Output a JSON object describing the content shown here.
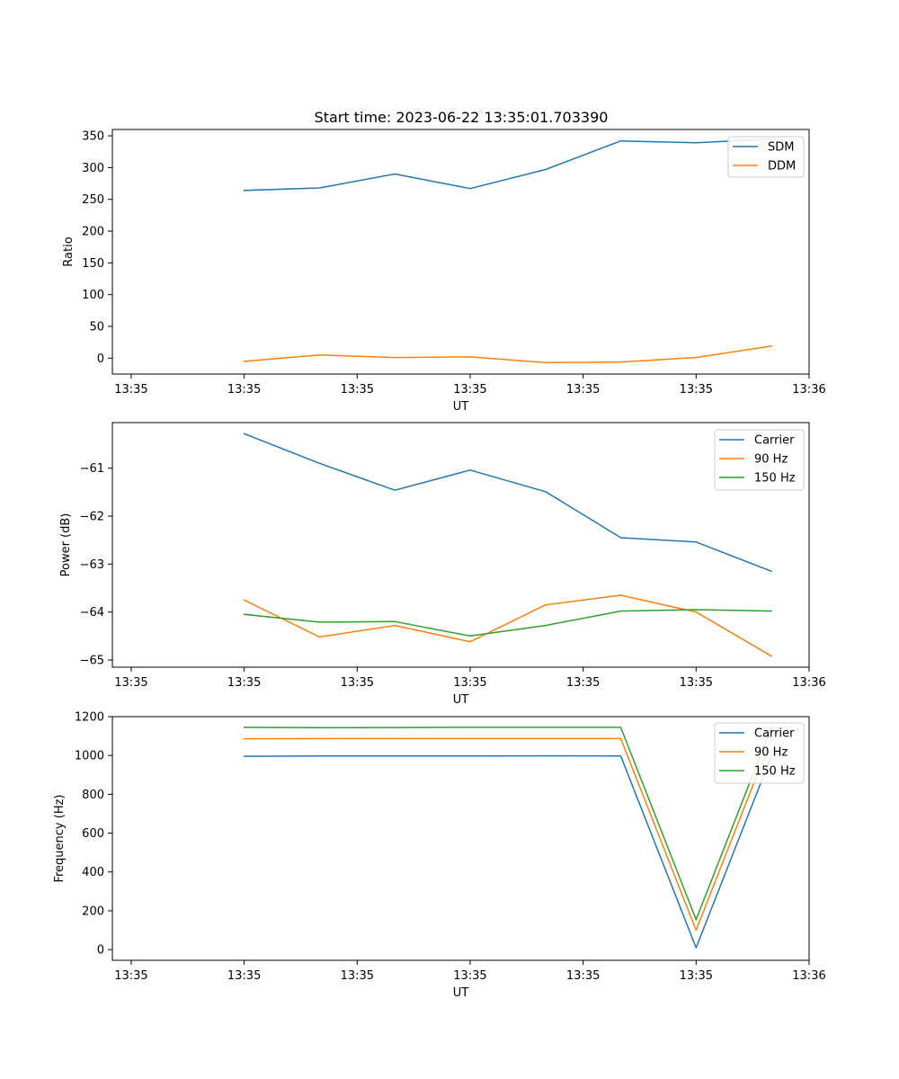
{
  "title": "Start time: 2023-06-22 13:35:01.703390",
  "colors": {
    "blue": "#1f77b4",
    "orange": "#ff7f0e",
    "green": "#2ca02c"
  },
  "chart_data": [
    {
      "type": "line",
      "title": "Start time: 2023-06-22 13:35:01.703390",
      "xlabel": "UT",
      "ylabel": "Ratio",
      "x": [
        1,
        2,
        3,
        4,
        5,
        6,
        7,
        8
      ],
      "xlim": [
        -0.75,
        8.5
      ],
      "xticks": [
        -0.5,
        1,
        2.5,
        4,
        5.5,
        7,
        8.5
      ],
      "xtick_labels": [
        "13:35",
        "13:35",
        "13:35",
        "13:35",
        "13:35",
        "13:35",
        "13:36"
      ],
      "ylim": [
        -25,
        360
      ],
      "yticks": [
        0,
        50,
        100,
        150,
        200,
        250,
        300,
        350
      ],
      "ytick_labels": [
        "0",
        "50",
        "100",
        "150",
        "200",
        "250",
        "300",
        "350"
      ],
      "legend_position": "upper-right",
      "series": [
        {
          "name": "SDM",
          "color": "#1f77b4",
          "values": [
            264,
            268,
            290,
            267,
            297,
            342,
            339,
            345
          ]
        },
        {
          "name": "DDM",
          "color": "#ff7f0e",
          "values": [
            -5,
            5,
            1,
            2,
            -7,
            -6,
            1,
            19
          ]
        }
      ]
    },
    {
      "type": "line",
      "title": "",
      "xlabel": "UT",
      "ylabel": "Power (dB)",
      "x": [
        1,
        2,
        3,
        4,
        5,
        6,
        7,
        8
      ],
      "xlim": [
        -0.75,
        8.5
      ],
      "xticks": [
        -0.5,
        1,
        2.5,
        4,
        5.5,
        7,
        8.5
      ],
      "xtick_labels": [
        "13:35",
        "13:35",
        "13:35",
        "13:35",
        "13:35",
        "13:35",
        "13:36"
      ],
      "ylim": [
        -65.15,
        -60.05
      ],
      "yticks": [
        -65,
        -64,
        -63,
        -62,
        -61
      ],
      "ytick_labels": [
        "−65",
        "−64",
        "−63",
        "−62",
        "−61"
      ],
      "legend_position": "upper-right",
      "series": [
        {
          "name": "Carrier",
          "color": "#1f77b4",
          "values": [
            -60.28,
            -60.9,
            -61.46,
            -61.04,
            -61.49,
            -62.45,
            -62.54,
            -63.15
          ]
        },
        {
          "name": "90 Hz",
          "color": "#ff7f0e",
          "values": [
            -63.75,
            -64.52,
            -64.28,
            -64.62,
            -63.85,
            -63.65,
            -64.0,
            -64.92
          ]
        },
        {
          "name": "150 Hz",
          "color": "#2ca02c",
          "values": [
            -64.05,
            -64.21,
            -64.2,
            -64.5,
            -64.28,
            -63.98,
            -63.95,
            -63.98
          ]
        }
      ]
    },
    {
      "type": "line",
      "title": "",
      "xlabel": "UT",
      "ylabel": "Frequency (Hz)",
      "x": [
        1,
        2,
        3,
        4,
        5,
        6,
        7,
        8
      ],
      "xlim": [
        -0.75,
        8.5
      ],
      "xticks": [
        -0.5,
        1,
        2.5,
        4,
        5.5,
        7,
        8.5
      ],
      "xtick_labels": [
        "13:35",
        "13:35",
        "13:35",
        "13:35",
        "13:35",
        "13:35",
        "13:36"
      ],
      "ylim": [
        -55,
        1200
      ],
      "yticks": [
        0,
        200,
        400,
        600,
        800,
        1000,
        1200
      ],
      "ytick_labels": [
        "0",
        "200",
        "400",
        "600",
        "800",
        "1000",
        "1200"
      ],
      "legend_position": "upper-right",
      "series": [
        {
          "name": "Carrier",
          "color": "#1f77b4",
          "values": [
            996,
            997,
            997,
            997,
            998,
            997,
            10,
            998
          ]
        },
        {
          "name": "90 Hz",
          "color": "#ff7f0e",
          "values": [
            1086,
            1087,
            1087,
            1087,
            1087,
            1087,
            100,
            1088
          ]
        },
        {
          "name": "150 Hz",
          "color": "#2ca02c",
          "values": [
            1145,
            1143,
            1144,
            1145,
            1145,
            1145,
            155,
            1145
          ]
        }
      ]
    }
  ]
}
